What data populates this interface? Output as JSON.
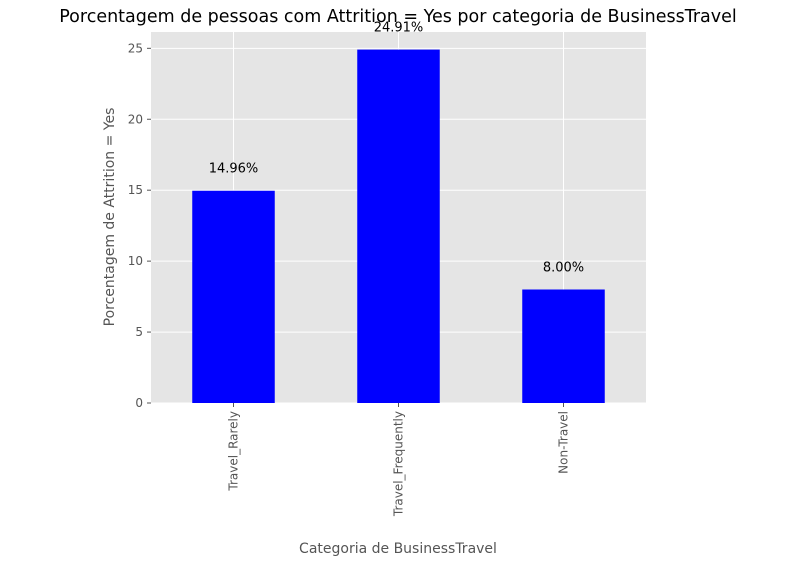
{
  "chart_data": {
    "type": "bar",
    "title": "Porcentagem de pessoas com Attrition = Yes por categoria de BusinessTravel",
    "xlabel": "Categoria de BusinessTravel",
    "ylabel": "Porcentagem de Attrition = Yes",
    "categories": [
      "Travel_Rarely",
      "Travel_Frequently",
      "Non-Travel"
    ],
    "values": [
      14.96,
      24.91,
      8.0
    ],
    "data_labels": [
      "14.96%",
      "24.91%",
      "8.00%"
    ],
    "ylim": [
      0,
      26.15
    ],
    "yticks": [
      0,
      5,
      10,
      15,
      20,
      25
    ],
    "bar_color": "#0000ff",
    "plot_background": "#e5e5e5",
    "grid_color": "#ffffff",
    "grid": true
  }
}
